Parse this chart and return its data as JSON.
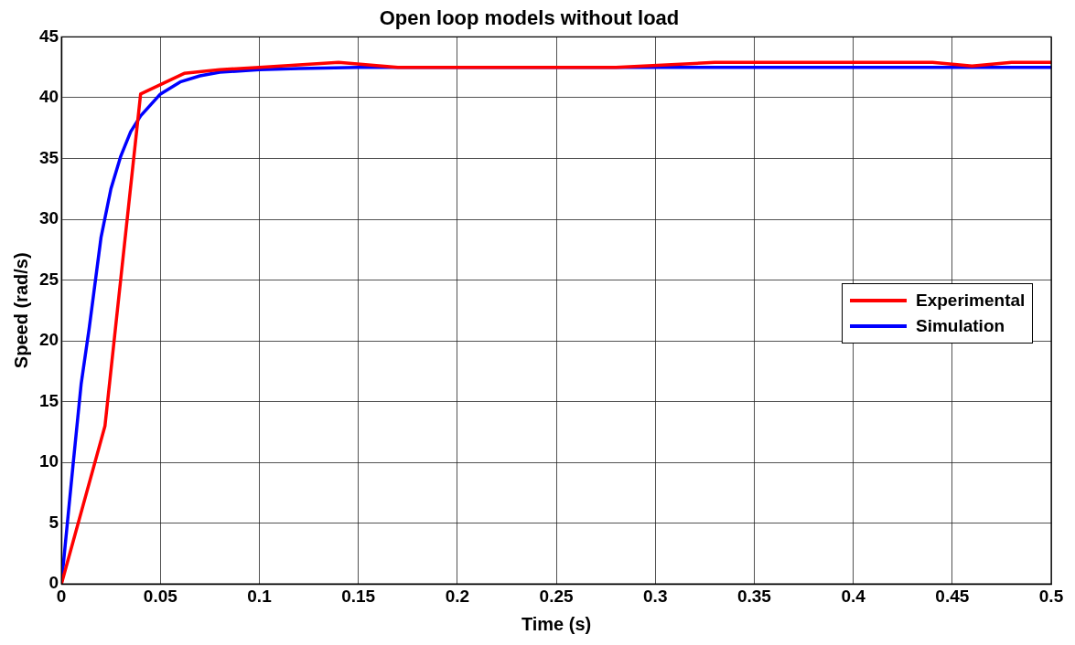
{
  "chart_data": {
    "type": "line",
    "title": "Open loop models without load",
    "xlabel": "Time (s)",
    "ylabel": "Speed (rad/s)",
    "xlim": [
      0,
      0.5
    ],
    "xticks": [
      0,
      0.05,
      0.1,
      0.15,
      0.2,
      0.25,
      0.3,
      0.35,
      0.4,
      0.45,
      0.5
    ],
    "ylim": [
      0,
      45
    ],
    "yticks": [
      0,
      5,
      10,
      15,
      20,
      25,
      30,
      35,
      40,
      45
    ],
    "grid": true,
    "legend": "right",
    "marker": "none",
    "line_style": "solid",
    "series": [
      {
        "name": "Experimental",
        "color": "#ff0000",
        "x": [
          0,
          0.022,
          0.04,
          0.062,
          0.08,
          0.1,
          0.14,
          0.17,
          0.28,
          0.33,
          0.44,
          0.46,
          0.48,
          0.5
        ],
        "values": [
          0,
          13,
          40.3,
          42,
          42.3,
          42.5,
          42.9,
          42.5,
          42.5,
          42.9,
          42.9,
          42.6,
          42.9,
          42.9
        ]
      },
      {
        "name": "Simulation",
        "color": "#0000ff",
        "x": [
          0,
          0.003,
          0.006,
          0.01,
          0.014,
          0.02,
          0.025,
          0.03,
          0.035,
          0.04,
          0.05,
          0.06,
          0.07,
          0.08,
          0.1,
          0.12,
          0.15,
          0.2,
          0.3,
          0.4,
          0.5
        ],
        "values": [
          0,
          5,
          10,
          16.5,
          21,
          28.5,
          32.5,
          35.2,
          37.2,
          38.5,
          40.3,
          41.3,
          41.8,
          42.1,
          42.3,
          42.4,
          42.5,
          42.5,
          42.5,
          42.5,
          42.5
        ]
      }
    ]
  }
}
